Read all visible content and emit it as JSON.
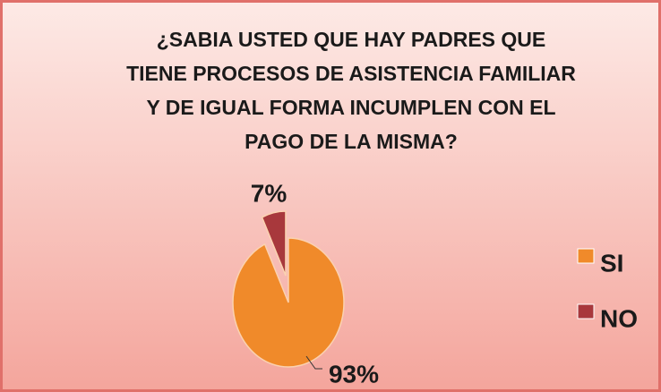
{
  "chart_data": {
    "type": "pie",
    "title": [
      "¿SABIA USTED  QUE HAY PADRES QUE",
      "TIENE PROCESOS DE ASISTENCIA FAMILIAR",
      "Y DE IGUAL FORMA INCUMPLEN CON EL",
      "PAGO DE LA MISMA?"
    ],
    "categories": [
      "SI",
      "NO"
    ],
    "values": [
      93,
      7
    ],
    "value_labels": [
      "93%",
      "7%"
    ],
    "colors": [
      "#f08a2a",
      "#a8383c"
    ],
    "legend": "right"
  }
}
